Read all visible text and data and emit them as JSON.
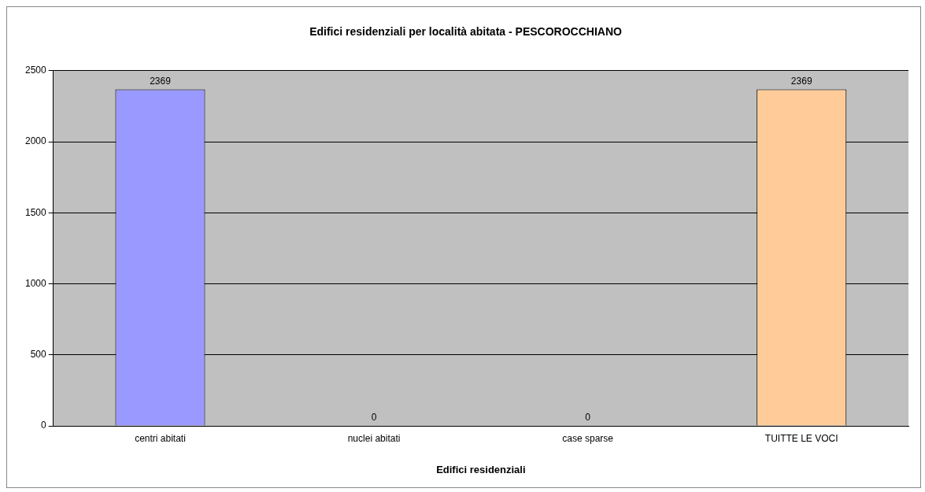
{
  "chart_data": {
    "type": "bar",
    "title": "Edifici residenziali per località abitata - PESCOROCCHIANO",
    "xlabel": "Edifici residenziali",
    "categories": [
      "centri abitati",
      "nuclei abitati",
      "case sparse",
      "TUITTE LE VOCI"
    ],
    "values": [
      2369,
      0,
      0,
      2369
    ],
    "colors": [
      "#9999ff",
      "#993366",
      "#ffffcc",
      "#ffcc99"
    ],
    "ylim": [
      0,
      2500
    ],
    "yticks": [
      0,
      500,
      1000,
      1500,
      2000,
      2500
    ],
    "grid": "y",
    "legend": false,
    "data_labels": true
  }
}
